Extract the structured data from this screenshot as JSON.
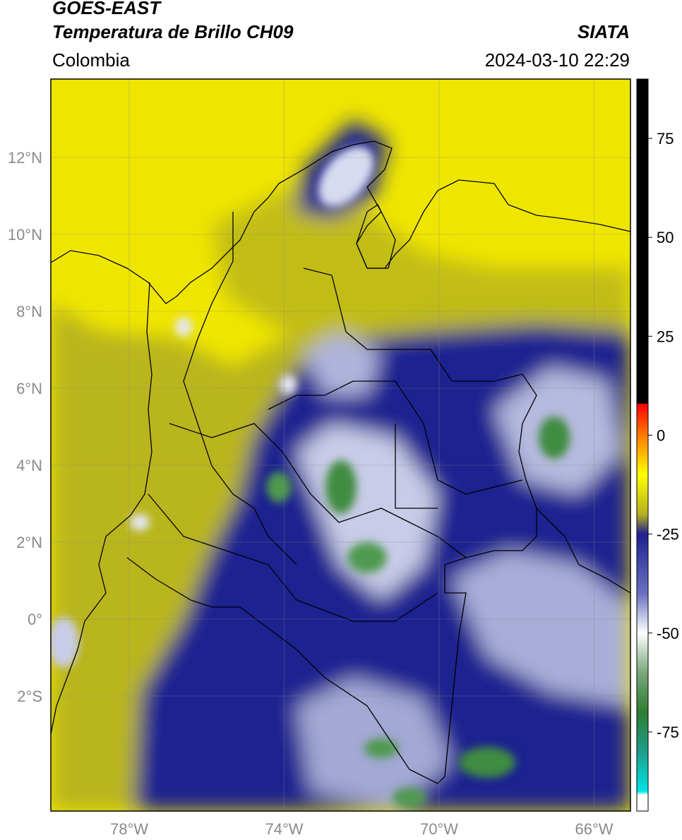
{
  "header": {
    "satellite": "GOES-EAST",
    "product": "Temperatura de Brillo CH09",
    "organization": "SIATA",
    "region": "Colombia",
    "timestamp": "2024-03-10 22:29"
  },
  "map": {
    "lon_range": [
      -80,
      -65
    ],
    "lat_range": [
      -5,
      14
    ],
    "lon_ticks": [
      {
        "value": -78,
        "label": "78°W"
      },
      {
        "value": -74,
        "label": "74°W"
      },
      {
        "value": -70,
        "label": "70°W"
      },
      {
        "value": -66,
        "label": "66°W"
      }
    ],
    "lat_ticks": [
      {
        "value": 12,
        "label": "12°N"
      },
      {
        "value": 10,
        "label": "10°N"
      },
      {
        "value": 8,
        "label": "8°N"
      },
      {
        "value": 6,
        "label": "6°N"
      },
      {
        "value": 4,
        "label": "4°N"
      },
      {
        "value": 2,
        "label": "2°N"
      },
      {
        "value": 0,
        "label": "0°"
      },
      {
        "value": -2,
        "label": "2°S"
      }
    ],
    "grid": true,
    "colors": {
      "yellow": "#f2ea00",
      "olive": "#b8b41c",
      "navy": "#1a1f8c",
      "light": "#c8cbe8",
      "green": "#3a8a3a"
    }
  },
  "colorbar": {
    "range": [
      -95,
      90
    ],
    "ticks": [
      {
        "value": 75,
        "label": "75"
      },
      {
        "value": 50,
        "label": "50"
      },
      {
        "value": 25,
        "label": "25"
      },
      {
        "value": 0,
        "label": "0"
      },
      {
        "value": -25,
        "label": "-25"
      },
      {
        "value": -50,
        "label": "-50"
      },
      {
        "value": -75,
        "label": "-75"
      }
    ],
    "stops": [
      {
        "value": 90,
        "color": "#000000"
      },
      {
        "value": 8,
        "color": "#000000"
      },
      {
        "value": 7.9,
        "color": "#ff0000"
      },
      {
        "value": 0,
        "color": "#ff7a00"
      },
      {
        "value": -10,
        "color": "#ffff00"
      },
      {
        "value": -20,
        "color": "#b5b020"
      },
      {
        "value": -25,
        "color": "#202090"
      },
      {
        "value": -40,
        "color": "#6a70c0"
      },
      {
        "value": -50,
        "color": "#ffffff"
      },
      {
        "value": -60,
        "color": "#7aa87a"
      },
      {
        "value": -70,
        "color": "#2e7d32"
      },
      {
        "value": -80,
        "color": "#1e9e8a"
      },
      {
        "value": -90,
        "color": "#00e5e5"
      },
      {
        "value": -91,
        "color": "#ffffff"
      },
      {
        "value": -95,
        "color": "#ffffff"
      }
    ]
  }
}
